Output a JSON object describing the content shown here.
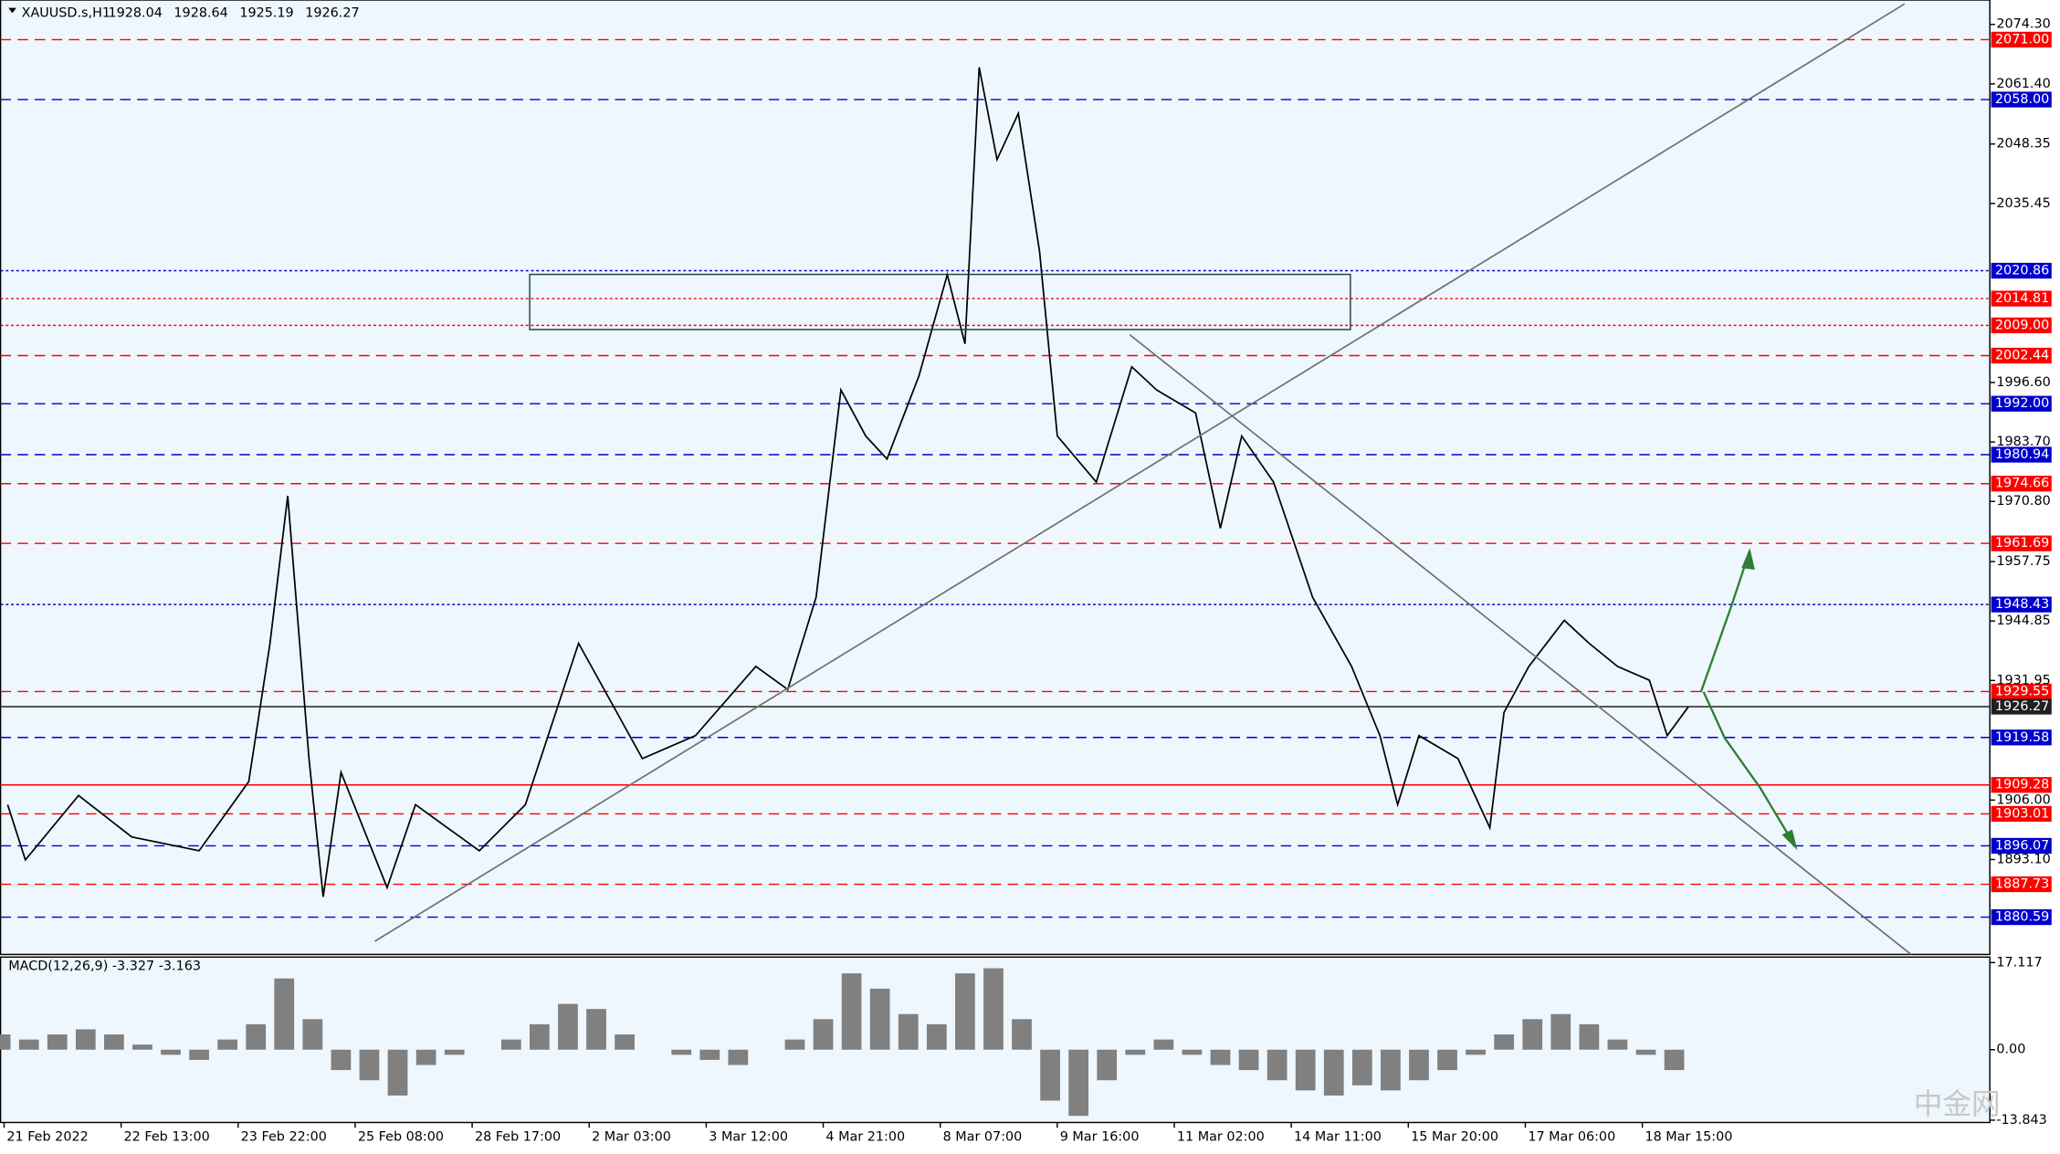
{
  "chart_data": [
    {
      "type": "line",
      "title": "XAUUSD.s,H1",
      "ohlc": [
        1928.04,
        1928.64,
        1925.19,
        1926.27
      ],
      "color": "#000000",
      "x": [
        2,
        7,
        22,
        37,
        56,
        70,
        76,
        81,
        87,
        91,
        96,
        109,
        117,
        126,
        135,
        148,
        163,
        181,
        196,
        213,
        222,
        230,
        237,
        244,
        250,
        259,
        267,
        272,
        276,
        281,
        287,
        293,
        298,
        309,
        319,
        326,
        337,
        344,
        350,
        359,
        370,
        381,
        389,
        394,
        400,
        411,
        420,
        424,
        431,
        441,
        448,
        456,
        465,
        470,
        476
      ],
      "values": [
        1905,
        1893,
        1907,
        1898,
        1895,
        1910,
        1940,
        1972,
        1915,
        1885,
        1912,
        1887,
        1905,
        1900,
        1895,
        1905,
        1940,
        1915,
        1920,
        1935,
        1930,
        1950,
        1995,
        1985,
        1980,
        1998,
        2020,
        2005,
        2065,
        2045,
        2055,
        2025,
        1985,
        1975,
        2000,
        1995,
        1990,
        1965,
        1985,
        1975,
        1950,
        1935,
        1920,
        1905,
        1920,
        1915,
        1900,
        1925,
        1935,
        1945,
        1940,
        1935,
        1932,
        1920,
        1926.27
      ],
      "xlim": [
        0,
        561
      ],
      "ylim": [
        1872.5,
        2079.6
      ],
      "xticks": [
        {
          "value": 1,
          "label": "21 Feb 2022"
        },
        {
          "value": 34,
          "label": "22 Feb 13:00"
        },
        {
          "value": 67,
          "label": "23 Feb 22:00"
        },
        {
          "value": 100,
          "label": "25 Feb 08:00"
        },
        {
          "value": 133,
          "label": "28 Feb 17:00"
        },
        {
          "value": 166,
          "label": "2 Mar 03:00"
        },
        {
          "value": 199,
          "label": "3 Mar 12:00"
        },
        {
          "value": 232,
          "label": "4 Mar 21:00"
        },
        {
          "value": 265,
          "label": "8 Mar 07:00"
        },
        {
          "value": 298,
          "label": "9 Mar 16:00"
        },
        {
          "value": 331,
          "label": "11 Mar 02:00"
        },
        {
          "value": 364,
          "label": "14 Mar 11:00"
        },
        {
          "value": 397,
          "label": "15 Mar 20:00"
        },
        {
          "value": 430,
          "label": "17 Mar 06:00"
        },
        {
          "value": 463,
          "label": "18 Mar 15:00"
        }
      ],
      "yticks": [
        {
          "value": 2074.3,
          "label": "2074.30"
        },
        {
          "value": 2061.4,
          "label": "2061.40"
        },
        2048.35,
        2035.45,
        {
          "value": 1996.6,
          "label": "1996.60"
        },
        {
          "value": 1983.7,
          "label": "1983.70"
        },
        {
          "value": 1970.8,
          "label": "1970.80"
        },
        1957.75,
        1944.85,
        1931.95,
        {
          "value": 1906,
          "label": "1906.00"
        },
        {
          "value": 1893.1,
          "label": "1893.10"
        }
      ],
      "levels": [
        {
          "value": 2071,
          "label": "2071.00",
          "color": "#ff0000",
          "style": "dashed"
        },
        {
          "value": 2058,
          "label": "2058.00",
          "color": "#0000cd",
          "style": "dashed"
        },
        {
          "value": 2020.86,
          "color": "#0000cd",
          "style": "dotted"
        },
        {
          "value": 2014.81,
          "color": "#ff0000",
          "style": "dotted"
        },
        {
          "value": 2009,
          "label": "2009.00",
          "color": "#ff0000",
          "style": "dotted"
        },
        {
          "value": 2002.44,
          "color": "#ff0000",
          "style": "dashed"
        },
        {
          "value": 1992,
          "label": "1992.00",
          "color": "#0000cd",
          "style": "dashed"
        },
        {
          "value": 1980.94,
          "color": "#0000cd",
          "style": "dashed"
        },
        {
          "value": 1974.66,
          "color": "#ff0000",
          "style": "dashed"
        },
        {
          "value": 1961.69,
          "color": "#ff0000",
          "style": "dashed"
        },
        {
          "value": 1948.43,
          "color": "#0000cd",
          "style": "dotted"
        },
        {
          "value": 1929.55,
          "color": "#ff0000",
          "style": "dashed"
        },
        {
          "value": 1926.27,
          "color": "#202020",
          "style": "solid"
        },
        {
          "value": 1919.58,
          "color": "#0000cd",
          "style": "dashed"
        },
        {
          "value": 1909.28,
          "color": "#ff0000",
          "style": "solid"
        },
        {
          "value": 1903.01,
          "color": "#ff0000",
          "style": "dashed"
        },
        {
          "value": 1896.07,
          "color": "#0000cd",
          "style": "dashed"
        },
        {
          "value": 1887.73,
          "color": "#ff0000",
          "style": "dashed"
        },
        {
          "value": 1880.59,
          "color": "#0000cd",
          "style": "dashed"
        }
      ],
      "watermark": "中金网"
    },
    {
      "type": "bar",
      "title": "MACD(12,26,9) -3.327 -3.163",
      "color": "#808080",
      "x": [
        0,
        8,
        16,
        24,
        32,
        40,
        48,
        56,
        64,
        72,
        80,
        88,
        96,
        104,
        112,
        120,
        128,
        136,
        144,
        152,
        160,
        168,
        176,
        184,
        192,
        200,
        208,
        216,
        224,
        232,
        240,
        248,
        256,
        264,
        272,
        280,
        288,
        296,
        304,
        312,
        320,
        328,
        336,
        344,
        352,
        360,
        368,
        376,
        384,
        392,
        400,
        408,
        416,
        424,
        432,
        440,
        448,
        456,
        464,
        472
      ],
      "values": [
        3,
        2,
        3,
        4,
        3,
        1,
        -1,
        -2,
        2,
        5,
        14,
        6,
        -4,
        -6,
        -9,
        -3,
        -1,
        0,
        2,
        5,
        9,
        8,
        3,
        0,
        -1,
        -2,
        -3,
        0,
        2,
        6,
        15,
        12,
        7,
        5,
        15,
        16,
        6,
        -10,
        -13,
        -6,
        -1,
        2,
        -1,
        -3,
        -4,
        -6,
        -8,
        -9,
        -7,
        -8,
        -6,
        -4,
        -1,
        3,
        6,
        7,
        5,
        2,
        -1,
        -4
      ],
      "xlim": [
        0,
        561
      ],
      "ylim": [
        -14.3,
        18.2
      ],
      "yticks": [
        17.117,
        {
          "value": 0,
          "label": "0.00"
        },
        -13.843
      ]
    }
  ]
}
